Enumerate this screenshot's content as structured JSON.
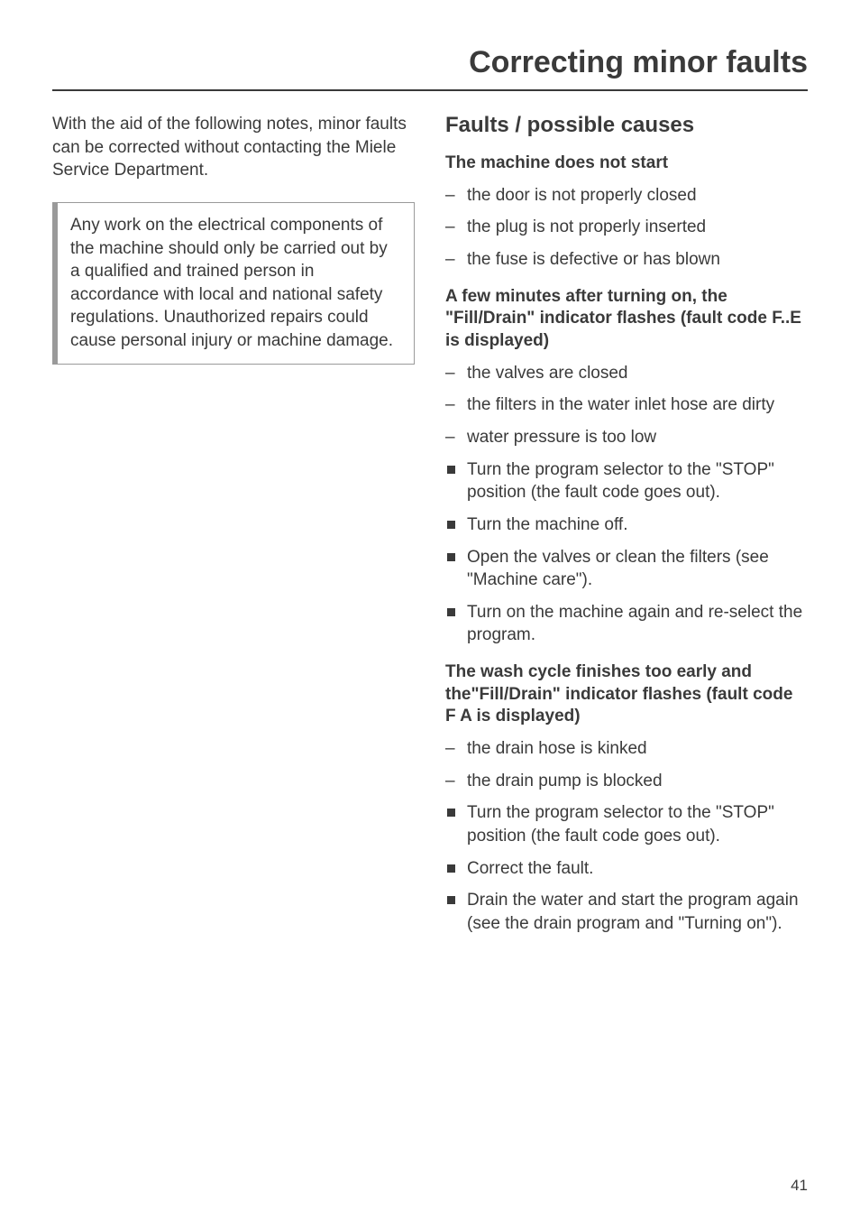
{
  "page_title": "Correcting minor faults",
  "page_number": "41",
  "left": {
    "intro": "With the aid of the following notes, minor faults can be corrected without contacting the Miele Service Department.",
    "callout": "Any work on the electrical components of the machine should only be carried out by a qualified and trained person in accordance with local and national safety regulations. Unauthorized repairs could cause personal injury or machine damage."
  },
  "right": {
    "section_title": "Faults / possible causes",
    "block1": {
      "title": "The machine does not start",
      "dash": [
        "the door is not properly closed",
        "the plug is not properly inserted",
        "the fuse is defective or has blown"
      ]
    },
    "block2": {
      "title": "A few minutes after turning on, the \"Fill/Drain\" indicator flashes (fault code F..E is displayed)",
      "dash": [
        "the valves are closed",
        "the filters in the water inlet hose are dirty",
        "water pressure is too low"
      ],
      "square": [
        "Turn the program selector to the \"STOP\" position (the fault code goes out).",
        "Turn the machine off.",
        "Open the valves or clean the filters (see \"Machine care\").",
        "Turn on the machine again and re-select the program."
      ]
    },
    "block3": {
      "title": "The wash cycle finishes too early and the\"Fill/Drain\" indicator flashes (fault code F A is displayed)",
      "dash": [
        "the drain hose is kinked",
        "the drain pump is blocked"
      ],
      "square": [
        "Turn the program selector to the \"STOP\" position (the fault code goes out).",
        "Correct the fault.",
        "Drain the water and start the program again (see the drain program and \"Turning on\")."
      ]
    }
  }
}
